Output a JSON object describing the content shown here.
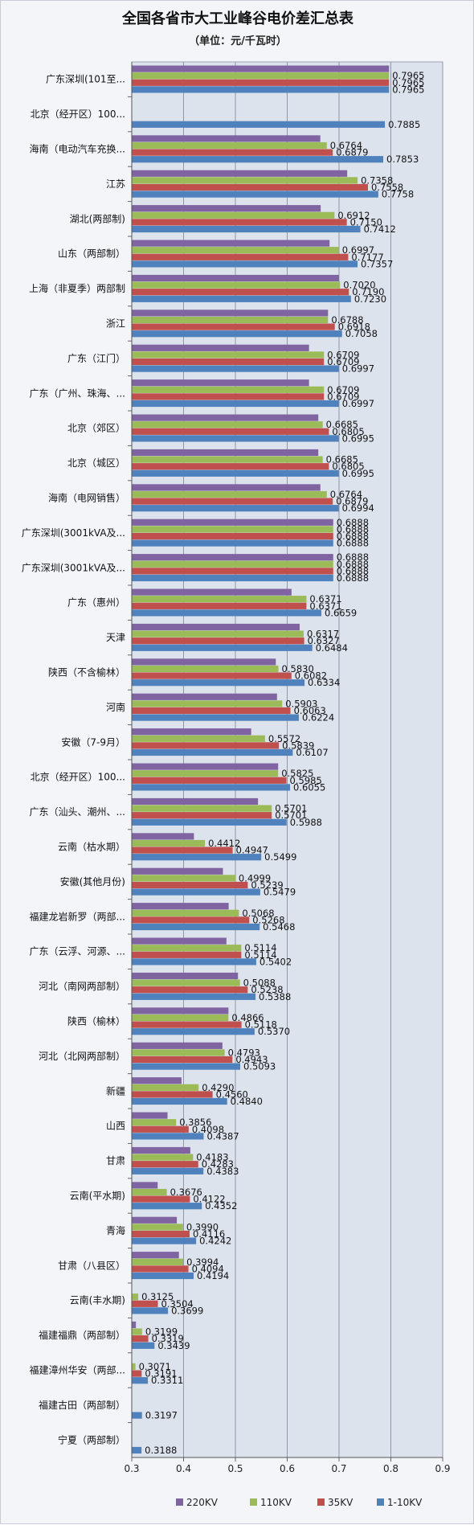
{
  "chart_data": {
    "type": "bar",
    "orientation": "horizontal",
    "title": "全国各省市大工业峰谷电价差汇总表",
    "subtitle": "（单位：元/千瓦时）",
    "xlim": [
      0.3,
      0.9
    ],
    "xticks": [
      "0.3",
      "0.4",
      "0.5",
      "0.6",
      "0.7",
      "0.8",
      "0.9"
    ],
    "grid": true,
    "legend_position": "bottom",
    "series": [
      {
        "name": "220KV",
        "color": "#8064a2"
      },
      {
        "name": "110KV",
        "color": "#9bbb59"
      },
      {
        "name": "35KV",
        "color": "#c0504d"
      },
      {
        "name": "1-10KV",
        "color": "#4f81bd"
      }
    ],
    "categories": [
      {
        "label": "广东深圳(101至...",
        "values": [
          0.7965,
          0.7965,
          0.7965,
          0.7965
        ],
        "labels": [
          "",
          "0.7965",
          "0.7965",
          "0.7965"
        ]
      },
      {
        "label": "北京（经开区）100...",
        "values": [
          null,
          null,
          null,
          0.7885
        ],
        "labels": [
          "",
          "",
          "",
          "0.7885"
        ]
      },
      {
        "label": "海南（电动汽车充换...",
        "values": [
          0.6639,
          0.6764,
          0.6879,
          0.7853
        ],
        "labels": [
          "",
          "0.6764",
          "0.6879",
          "0.7853"
        ]
      },
      {
        "label": "江苏",
        "values": [
          0.7158,
          0.7358,
          0.7558,
          0.7758
        ],
        "labels": [
          "",
          "0.7358",
          "0.7558",
          "0.7758"
        ]
      },
      {
        "label": "湖北(两部制)",
        "values": [
          0.6646,
          0.6912,
          0.715,
          0.7412
        ],
        "labels": [
          "",
          "0.6912",
          "0.7150",
          "0.7412"
        ]
      },
      {
        "label": "山东（两部制）",
        "values": [
          0.6817,
          0.6997,
          0.7177,
          0.7357
        ],
        "labels": [
          "",
          "0.6997",
          "0.7177",
          "0.7357"
        ]
      },
      {
        "label": "上海（非夏季）两部制",
        "values": [
          0.6998,
          0.702,
          0.719,
          0.723
        ],
        "labels": [
          "",
          "0.7020",
          "0.7190",
          "0.7230"
        ]
      },
      {
        "label": "浙江",
        "values": [
          0.6788,
          0.6788,
          0.6918,
          0.7058
        ],
        "labels": [
          "",
          "0.6788",
          "0.6918",
          "0.7058"
        ]
      },
      {
        "label": "广东（江门）",
        "values": [
          0.6421,
          0.6709,
          0.6709,
          0.6997
        ],
        "labels": [
          "",
          "0.6709",
          "0.6709",
          "0.6997"
        ]
      },
      {
        "label": "广东（广州、珠海、...",
        "values": [
          0.6421,
          0.6709,
          0.6709,
          0.6997
        ],
        "labels": [
          "",
          "0.6709",
          "0.6709",
          "0.6997"
        ]
      },
      {
        "label": "北京（郊区）",
        "values": [
          0.66,
          0.6685,
          0.6805,
          0.6995
        ],
        "labels": [
          "",
          "0.6685",
          "0.6805",
          "0.6995"
        ]
      },
      {
        "label": "北京（城区）",
        "values": [
          0.66,
          0.6685,
          0.6805,
          0.6995
        ],
        "labels": [
          "",
          "0.6685",
          "0.6805",
          "0.6995"
        ]
      },
      {
        "label": "海南（电网销售）",
        "values": [
          0.664,
          0.6764,
          0.6879,
          0.6994
        ],
        "labels": [
          "",
          "0.6764",
          "0.6879",
          "0.6994"
        ]
      },
      {
        "label": "广东深圳(3001kVA及...",
        "values": [
          0.6888,
          0.6888,
          0.6888,
          0.6888
        ],
        "labels": [
          "0.6888",
          "0.6888",
          "0.6888",
          "0.6888"
        ]
      },
      {
        "label": "广东深圳(3001kVA及...",
        "values": [
          0.6888,
          0.6888,
          0.6888,
          0.6888
        ],
        "labels": [
          "0.6888",
          "0.6888",
          "0.6888",
          "0.6888"
        ]
      },
      {
        "label": "广东（惠州）",
        "values": [
          0.6083,
          0.6371,
          0.6371,
          0.6659
        ],
        "labels": [
          "",
          "0.6371",
          "0.6371",
          "0.6659"
        ]
      },
      {
        "label": "天津",
        "values": [
          0.624,
          0.6317,
          0.6327,
          0.6484
        ],
        "labels": [
          "",
          "0.6317",
          "0.6327",
          "0.6484"
        ]
      },
      {
        "label": "陕西（不含榆林）",
        "values": [
          0.578,
          0.583,
          0.6082,
          0.6334
        ],
        "labels": [
          "",
          "0.5830",
          "0.6082",
          "0.6334"
        ]
      },
      {
        "label": "河南",
        "values": [
          0.5803,
          0.5903,
          0.6063,
          0.6224
        ],
        "labels": [
          "",
          "0.5903",
          "0.6063",
          "0.6224"
        ]
      },
      {
        "label": "安徽（7-9月）",
        "values": [
          0.5305,
          0.5572,
          0.5839,
          0.6107
        ],
        "labels": [
          "",
          "0.5572",
          "0.5839",
          "0.6107"
        ]
      },
      {
        "label": "北京（经开区）100...",
        "values": [
          0.5825,
          0.5825,
          0.5985,
          0.6055
        ],
        "labels": [
          "",
          "0.5825",
          "0.5985",
          "0.6055"
        ]
      },
      {
        "label": "广东（汕头、潮州、...",
        "values": [
          0.5437,
          0.5701,
          0.5701,
          0.5988
        ],
        "labels": [
          "",
          "0.5701",
          "0.5701",
          "0.5988"
        ]
      },
      {
        "label": "云南（枯水期）",
        "values": [
          0.42,
          0.4412,
          0.4947,
          0.5499
        ],
        "labels": [
          "",
          "0.4412",
          "0.4947",
          "0.5499"
        ]
      },
      {
        "label": "安徽(其他月份)",
        "values": [
          0.476,
          0.4999,
          0.5239,
          0.5479
        ],
        "labels": [
          "",
          "0.4999",
          "0.5239",
          "0.5479"
        ]
      },
      {
        "label": "福建龙岩新罗（两部...",
        "values": [
          0.487,
          0.5068,
          0.5268,
          0.5468
        ],
        "labels": [
          "",
          "0.5068",
          "0.5268",
          "0.5468"
        ]
      },
      {
        "label": "广东（云浮、河源、...",
        "values": [
          0.4827,
          0.5114,
          0.5114,
          0.5402
        ],
        "labels": [
          "",
          "0.5114",
          "0.5114",
          "0.5402"
        ]
      },
      {
        "label": "河北（南网两部制）",
        "values": [
          0.505,
          0.5088,
          0.5238,
          0.5388
        ],
        "labels": [
          "",
          "0.5088",
          "0.5238",
          "0.5388"
        ]
      },
      {
        "label": "陕西（榆林）",
        "values": [
          0.4866,
          0.4866,
          0.5118,
          0.537
        ],
        "labels": [
          "",
          "0.4866",
          "0.5118",
          "0.5370"
        ]
      },
      {
        "label": "河北（北网两部制）",
        "values": [
          0.475,
          0.4793,
          0.4943,
          0.5093
        ],
        "labels": [
          "",
          "0.4793",
          "0.4943",
          "0.5093"
        ]
      },
      {
        "label": "新疆",
        "values": [
          0.396,
          0.429,
          0.456,
          0.484
        ],
        "labels": [
          "",
          "0.4290",
          "0.4560",
          "0.4840"
        ]
      },
      {
        "label": "山西",
        "values": [
          0.369,
          0.3856,
          0.4098,
          0.4387
        ],
        "labels": [
          "",
          "0.3856",
          "0.4098",
          "0.4387"
        ]
      },
      {
        "label": "甘肃",
        "values": [
          0.413,
          0.4183,
          0.4283,
          0.4383
        ],
        "labels": [
          "",
          "0.4183",
          "0.4283",
          "0.4383"
        ]
      },
      {
        "label": "云南(平水期)",
        "values": [
          0.35,
          0.3676,
          0.4122,
          0.4352
        ],
        "labels": [
          "",
          "0.3676",
          "0.4122",
          "0.4352"
        ]
      },
      {
        "label": "青海",
        "values": [
          0.387,
          0.399,
          0.4116,
          0.4242
        ],
        "labels": [
          "",
          "0.3990",
          "0.4116",
          "0.4242"
        ]
      },
      {
        "label": "甘肃（八县区）",
        "values": [
          0.391,
          0.3994,
          0.4094,
          0.4194
        ],
        "labels": [
          "",
          "0.3994",
          "0.4094",
          "0.4194"
        ]
      },
      {
        "label": "云南(丰水期)",
        "values": [
          0.3,
          0.3125,
          0.3504,
          0.3699
        ],
        "labels": [
          "",
          "0.3125",
          "0.3504",
          "0.3699"
        ]
      },
      {
        "label": "福建福鼎（两部制）",
        "values": [
          0.308,
          0.3199,
          0.3319,
          0.3439
        ],
        "labels": [
          "",
          "0.3199",
          "0.3319",
          "0.3439"
        ]
      },
      {
        "label": "福建漳州华安（两部...",
        "values": [
          0.295,
          0.3071,
          0.3191,
          0.3311
        ],
        "labels": [
          "",
          "0.3071",
          "0.3191",
          "0.3311"
        ]
      },
      {
        "label": "福建古田（两部制）",
        "values": [
          null,
          null,
          null,
          0.3197
        ],
        "labels": [
          "",
          "",
          "",
          "0.3197"
        ]
      },
      {
        "label": "宁夏（两部制）",
        "values": [
          null,
          null,
          null,
          0.3188
        ],
        "labels": [
          "",
          "",
          "",
          "0.3188"
        ]
      }
    ]
  }
}
